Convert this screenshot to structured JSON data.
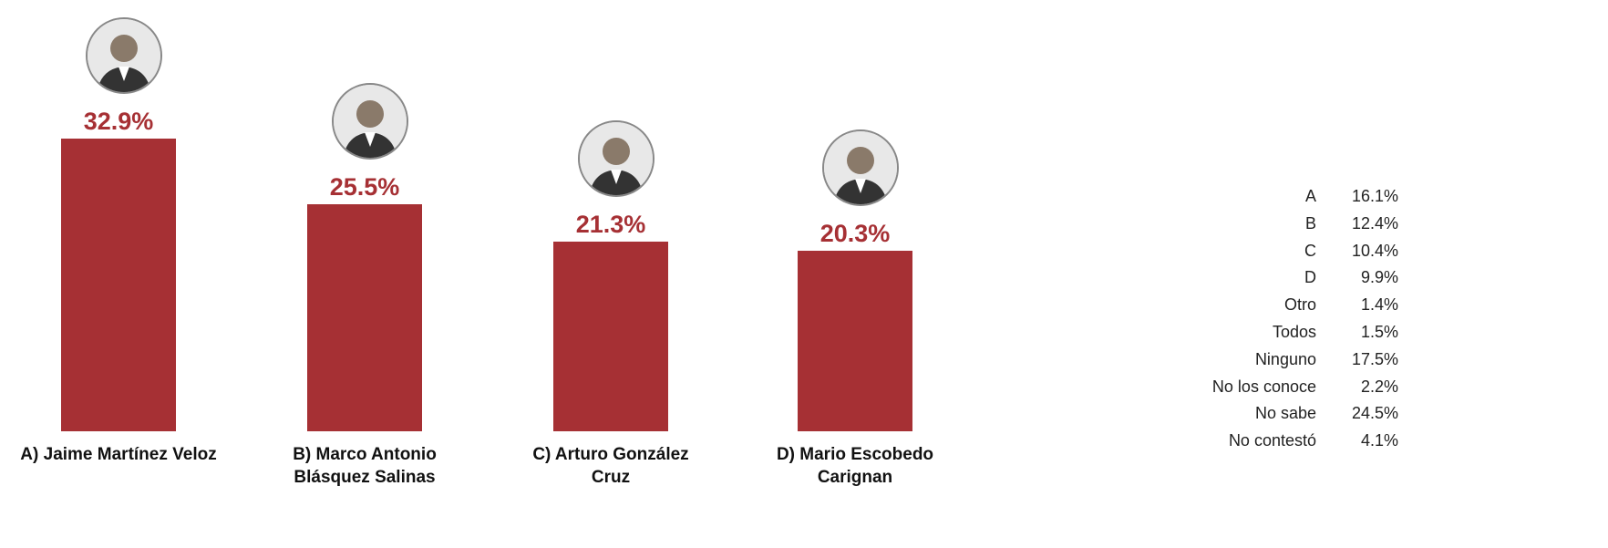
{
  "chart_data": {
    "type": "bar",
    "categories": [
      "A) Jaime Martínez Veloz",
      "B) Marco Antonio Blásquez Salinas",
      "C) Arturo González Cruz",
      "D) Mario Escobedo Carignan"
    ],
    "values": [
      32.9,
      25.5,
      21.3,
      20.3
    ],
    "value_labels": [
      "32.9%",
      "25.5%",
      "21.3%",
      "20.3%"
    ],
    "color": "#a63034"
  },
  "side_table": {
    "rows": [
      [
        "A",
        "16.1%"
      ],
      [
        "B",
        "12.4%"
      ],
      [
        "C",
        "10.4%"
      ],
      [
        "D",
        "9.9%"
      ],
      [
        "Otro",
        "1.4%"
      ],
      [
        "Todos",
        "1.5%"
      ],
      [
        "Ninguno",
        "17.5%"
      ],
      [
        "No los conoce",
        "2.2%"
      ],
      [
        "No sabe",
        "24.5%"
      ],
      [
        "No contestó",
        "4.1%"
      ]
    ]
  }
}
